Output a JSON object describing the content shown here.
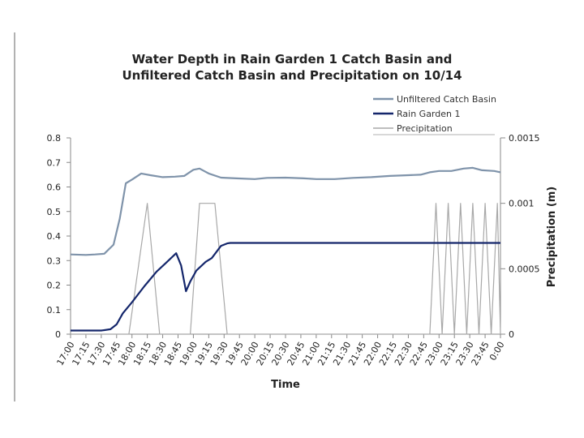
{
  "chart_data": {
    "type": "line",
    "title_line1": "Water Depth in Rain Garden 1 Catch Basin and",
    "title_line2": "Unfiltered Catch Basin and Precipitation on 10/14",
    "xlabel": "Time",
    "ylabel_right": "Precipitation (m)",
    "ylim_left": [
      0,
      0.8
    ],
    "ylim_right": [
      0,
      0.0015
    ],
    "left_ticks": [
      "0",
      "0.1",
      "0.2",
      "0.3",
      "0.4",
      "0.5",
      "0.6",
      "0.7",
      "0.8"
    ],
    "right_ticks": [
      "0",
      "0.0005",
      "0.001",
      "0.0015"
    ],
    "legend_position": "top-right",
    "categories": [
      "17:00",
      "17:15",
      "17:30",
      "17:45",
      "18:00",
      "18:15",
      "18:30",
      "18:45",
      "19:00",
      "19:15",
      "19:30",
      "19:45",
      "20:00",
      "20:15",
      "20:30",
      "20:45",
      "21:00",
      "21:15",
      "21:30",
      "21:45",
      "22:00",
      "22:15",
      "22:30",
      "22:45",
      "23:00",
      "23:15",
      "23:30",
      "23:45",
      "0:00"
    ],
    "series": [
      {
        "name": "Unfiltered Catch Basin",
        "axis": "left",
        "color": "#7f93aa",
        "x": [
          17.0,
          17.25,
          17.4,
          17.55,
          17.7,
          17.8,
          17.9,
          18.0,
          18.15,
          18.3,
          18.5,
          18.7,
          18.85,
          19.0,
          19.1,
          19.25,
          19.45,
          19.7,
          20.0,
          20.2,
          20.5,
          20.8,
          21.0,
          21.3,
          21.6,
          21.9,
          22.2,
          22.5,
          22.7,
          22.85,
          23.0,
          23.2,
          23.4,
          23.55,
          23.7,
          23.9,
          24.0
        ],
        "values": [
          0.325,
          0.323,
          0.325,
          0.328,
          0.365,
          0.47,
          0.615,
          0.63,
          0.655,
          0.648,
          0.64,
          0.642,
          0.645,
          0.67,
          0.675,
          0.655,
          0.638,
          0.635,
          0.632,
          0.637,
          0.638,
          0.635,
          0.632,
          0.632,
          0.637,
          0.64,
          0.645,
          0.648,
          0.65,
          0.66,
          0.665,
          0.665,
          0.675,
          0.678,
          0.668,
          0.665,
          0.66
        ]
      },
      {
        "name": "Rain Garden 1",
        "axis": "left",
        "color": "#14266b",
        "x": [
          17.0,
          17.5,
          17.65,
          17.75,
          17.85,
          18.0,
          18.2,
          18.4,
          18.55,
          18.72,
          18.8,
          18.88,
          18.95,
          19.05,
          19.2,
          19.3,
          19.45,
          19.55,
          19.6,
          19.7,
          20.0,
          21.0,
          22.0,
          23.0,
          24.0
        ],
        "values": [
          0.015,
          0.015,
          0.02,
          0.04,
          0.085,
          0.13,
          0.195,
          0.255,
          0.29,
          0.33,
          0.28,
          0.175,
          0.215,
          0.26,
          0.295,
          0.31,
          0.36,
          0.37,
          0.372,
          0.372,
          0.372,
          0.372,
          0.372,
          0.372,
          0.372
        ]
      },
      {
        "name": "Precipitation",
        "axis": "right",
        "color": "#a8a8a8",
        "x": [
          17.0,
          17.95,
          18.25,
          18.45,
          18.95,
          19.1,
          19.35,
          19.55,
          22.85,
          22.95,
          23.05,
          23.15,
          23.25,
          23.35,
          23.45,
          23.55,
          23.65,
          23.75,
          23.85,
          23.95,
          24.0
        ],
        "values": [
          0,
          0,
          0.001,
          0,
          0,
          0.001,
          0.001,
          0,
          0,
          0.001,
          0,
          0.001,
          0,
          0.001,
          0,
          0.001,
          0,
          0.001,
          0,
          0.001,
          0
        ]
      }
    ]
  }
}
